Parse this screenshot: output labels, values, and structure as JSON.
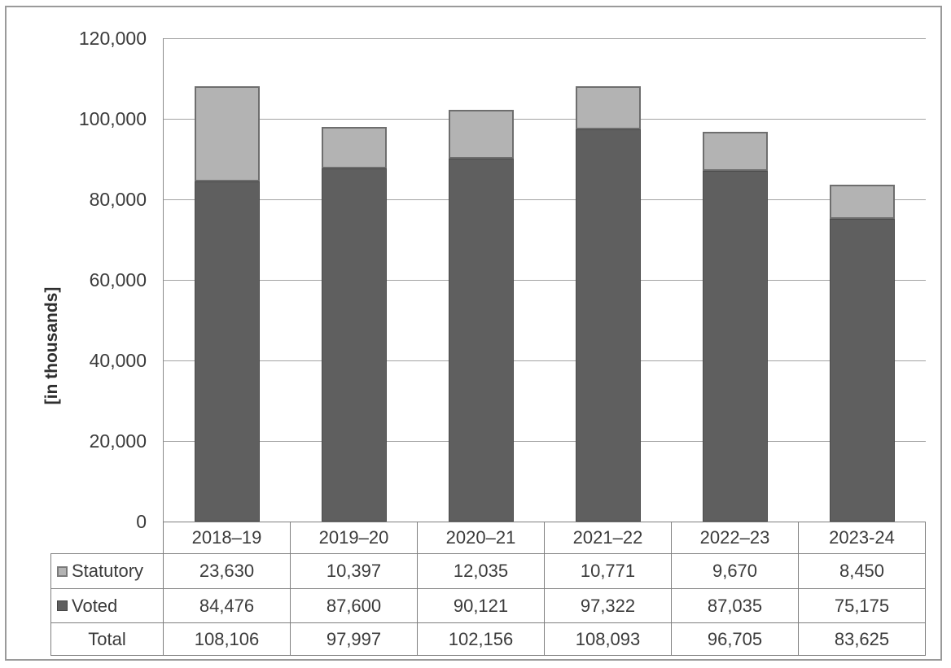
{
  "figure": {
    "y_axis_title": "[in thousands]",
    "colors": {
      "statutory_fill": "#b3b3b3",
      "statutory_border": "#6e6e6e",
      "voted_fill": "#5f5f5f",
      "voted_border": "#4b4b4b",
      "gridline": "#a3a3a3",
      "axis_line": "#8c8c8c",
      "table_border": "#7f7f7f",
      "frame_border": "#9a9a9a",
      "text": "#3b3b3b"
    }
  },
  "chart_data": {
    "type": "bar",
    "stacked": true,
    "title": "",
    "xlabel": "",
    "ylabel": "[in thousands]",
    "ylim": [
      0,
      120000
    ],
    "ytick_interval": 20000,
    "yticks": [
      {
        "value": 0,
        "label": "0"
      },
      {
        "value": 20000,
        "label": "20,000"
      },
      {
        "value": 40000,
        "label": "40,000"
      },
      {
        "value": 60000,
        "label": "60,000"
      },
      {
        "value": 80000,
        "label": "80,000"
      },
      {
        "value": 100000,
        "label": "100,000"
      },
      {
        "value": 120000,
        "label": "120,000"
      }
    ],
    "grid": true,
    "legend_position": "table-left-column",
    "categories": [
      "2018–19",
      "2019–20",
      "2020–21",
      "2021–22",
      "2022–23",
      "2023-24"
    ],
    "series": [
      {
        "name": "Statutory",
        "values": [
          23630,
          10397,
          12035,
          10771,
          9670,
          8450
        ],
        "display": [
          "23,630",
          "10,397",
          "12,035",
          "10,771",
          "9,670",
          "8,450"
        ],
        "color": "#b3b3b3"
      },
      {
        "name": "Voted",
        "values": [
          84476,
          87600,
          90121,
          97322,
          87035,
          75175
        ],
        "display": [
          "84,476",
          "87,600",
          "90,121",
          "97,322",
          "87,035",
          "75,175"
        ],
        "color": "#5f5f5f"
      }
    ],
    "totals": {
      "name": "Total",
      "values": [
        108106,
        97997,
        102156,
        108093,
        96705,
        83625
      ],
      "display": [
        "108,106",
        "97,997",
        "102,156",
        "108,093",
        "96,705",
        "83,625"
      ]
    }
  }
}
